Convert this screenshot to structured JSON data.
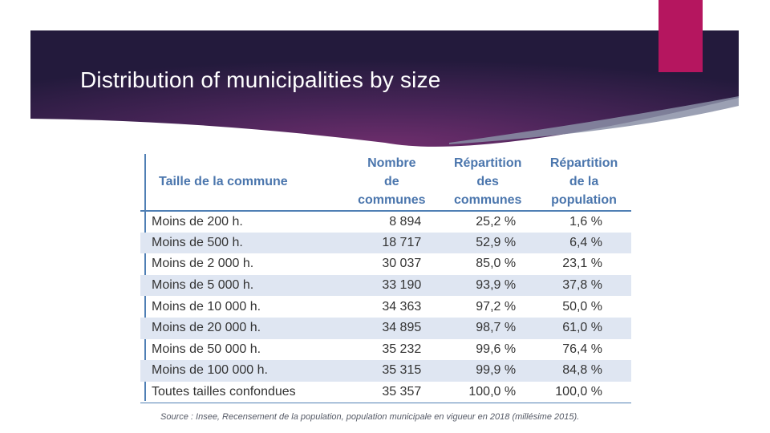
{
  "slide": {
    "title": "Distribution of municipalities by size",
    "colors": {
      "banner_dark": "#241a3f",
      "banner_mid": "#5a2a66",
      "accent": "#b5165f",
      "table_text_header": "#4b76ad",
      "row_stripe": "#dfe6f2"
    }
  },
  "table": {
    "headers": {
      "size": "Taille de la commune",
      "count": [
        "Nombre",
        "de",
        "communes"
      ],
      "share_communes": [
        "Répartition",
        "des",
        "communes"
      ],
      "share_population": [
        "Répartition",
        "de la",
        "population"
      ]
    },
    "rows": [
      {
        "size": "Moins de 200 h.",
        "count": "8 894",
        "share_communes": "25,2 %",
        "share_population": "1,6 %"
      },
      {
        "size": "Moins de 500 h.",
        "count": "18 717",
        "share_communes": "52,9 %",
        "share_population": "6,4 %"
      },
      {
        "size": "Moins de 2 000 h.",
        "count": "30 037",
        "share_communes": "85,0 %",
        "share_population": "23,1 %"
      },
      {
        "size": "Moins de 5 000 h.",
        "count": "33 190",
        "share_communes": "93,9 %",
        "share_population": "37,8 %"
      },
      {
        "size": "Moins de 10 000 h.",
        "count": "34 363",
        "share_communes": "97,2 %",
        "share_population": "50,0 %"
      },
      {
        "size": "Moins de 20 000 h.",
        "count": "34 895",
        "share_communes": "98,7 %",
        "share_population": "61,0 %"
      },
      {
        "size": "Moins de 50 000 h.",
        "count": "35 232",
        "share_communes": "99,6 %",
        "share_population": "76,4 %"
      },
      {
        "size": "Moins de 100 000 h.",
        "count": "35 315",
        "share_communes": "99,9 %",
        "share_population": "84,8 %"
      },
      {
        "size": "Toutes tailles confondues",
        "count": "35 357",
        "share_communes": "100,0 %",
        "share_population": "100,0 %"
      }
    ],
    "source": "Source : Insee, Recensement de la population, population municipale en vigueur en 2018 (millésime 2015)."
  }
}
